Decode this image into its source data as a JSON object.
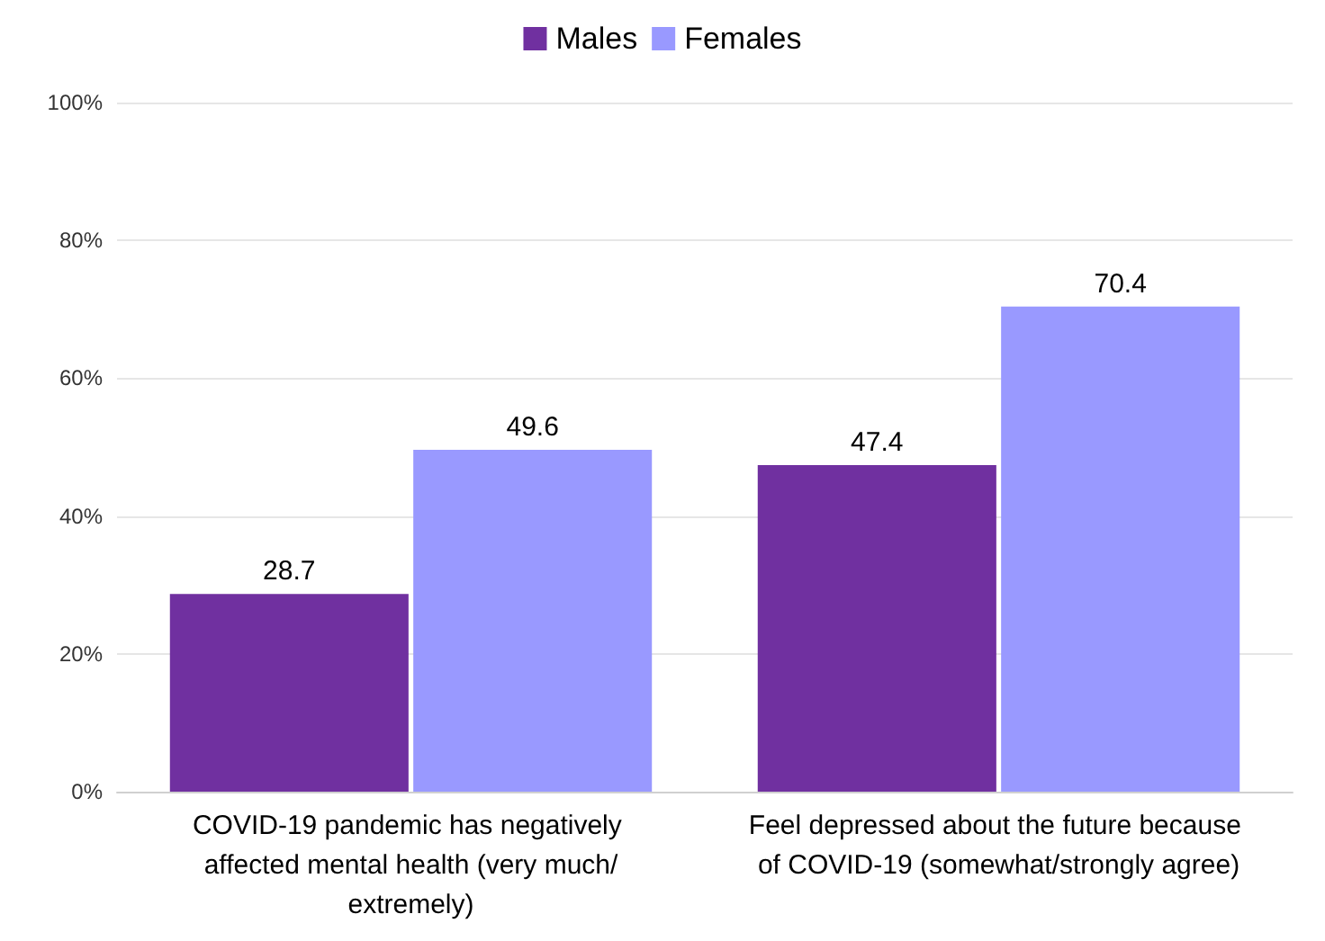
{
  "chart_data": {
    "type": "bar",
    "categories": [
      "COVID-19 pandemic has negatively affected mental health (very much/extremely)",
      "Feel depressed about the future because of COVID-19 (somewhat/strongly agree)"
    ],
    "series": [
      {
        "name": "Males",
        "color": "#7030a0",
        "values": [
          28.7,
          47.4
        ]
      },
      {
        "name": "Females",
        "color": "#9999ff",
        "values": [
          49.6,
          70.4
        ]
      }
    ],
    "ylim": [
      0,
      100
    ],
    "yticks": [
      {
        "value": 0,
        "label": "0%"
      },
      {
        "value": 20,
        "label": "20%"
      },
      {
        "value": 40,
        "label": "40%"
      },
      {
        "value": 60,
        "label": "60%"
      },
      {
        "value": 80,
        "label": "80%"
      },
      {
        "value": 100,
        "label": "100%"
      }
    ],
    "grid": "y",
    "legend": "top",
    "data_labels": true
  }
}
